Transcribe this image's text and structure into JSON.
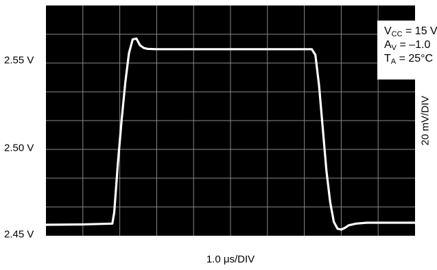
{
  "chart_data": {
    "type": "line",
    "xlabel": "1.0 μs/DIV",
    "ylabel_right": "20 mV/DIV",
    "ytick_labels": [
      {
        "label": "2.55 V",
        "value": 2.55
      },
      {
        "label": "2.50 V",
        "value": 2.5
      },
      {
        "label": "2.45 V",
        "value": 2.45
      }
    ],
    "x_divisions": 10,
    "y_divisions": 8,
    "xlim_div": [
      0,
      10
    ],
    "ylim": [
      2.4424,
      2.5768
    ],
    "grid": true,
    "legend": {
      "position": "top-right",
      "lines": [
        {
          "main": "V",
          "sub": "CC",
          "rest": " = 15 V"
        },
        {
          "main": "A",
          "sub": "V",
          "rest": " = –1.0"
        },
        {
          "main": "T",
          "sub": "A",
          "rest": " = 25°C"
        }
      ]
    },
    "series": [
      {
        "x": [
          0,
          1.0,
          1.8,
          1.85,
          1.95,
          2.05,
          2.15,
          2.25,
          2.35,
          2.45,
          2.55,
          2.65,
          2.75,
          3.0,
          3.5,
          4.5,
          5.5,
          6.5,
          7.2,
          7.3,
          7.4,
          7.5,
          7.6,
          7.7,
          7.8,
          7.9,
          8.0,
          8.1,
          8.2,
          8.4,
          8.7,
          9.0,
          10.0
        ],
        "y": [
          2.4488,
          2.449,
          2.4495,
          2.456,
          2.485,
          2.51,
          2.532,
          2.549,
          2.557,
          2.5575,
          2.5535,
          2.552,
          2.5515,
          2.5513,
          2.5513,
          2.5513,
          2.5513,
          2.5513,
          2.5513,
          2.548,
          2.53,
          2.505,
          2.48,
          2.462,
          2.4505,
          2.4465,
          2.446,
          2.447,
          2.4485,
          2.4495,
          2.45,
          2.45,
          2.45
        ],
        "color": "#ffffff"
      }
    ]
  }
}
